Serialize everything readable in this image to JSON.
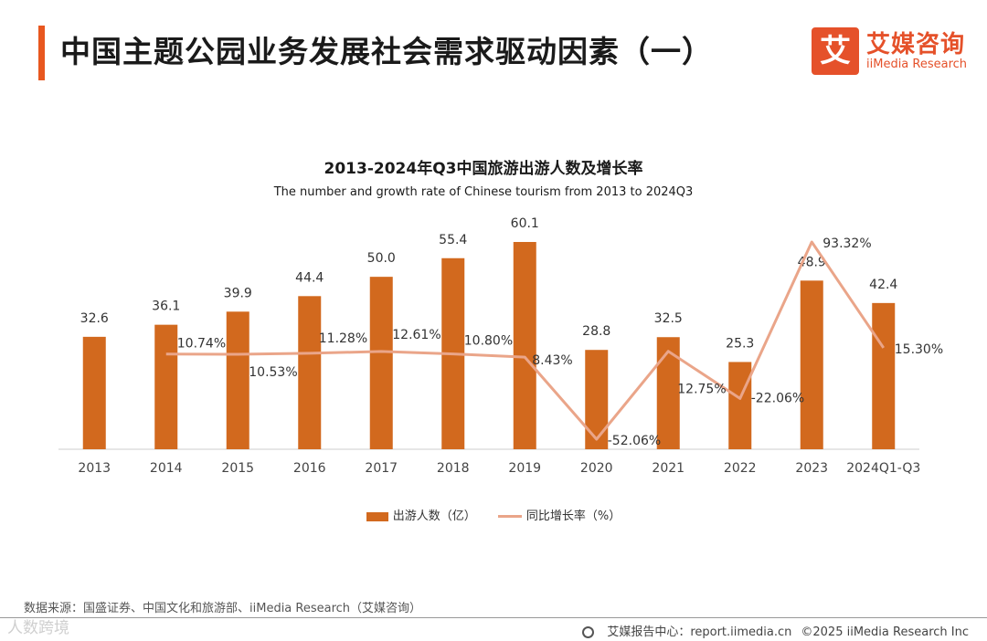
{
  "header": {
    "title": "中国主题公园业务发展社会需求驱动因素（一）",
    "logo_mark": "艾",
    "logo_cn": "艾媒咨询",
    "logo_en": "iiMedia Research"
  },
  "chart_data": {
    "type": "bar",
    "title": "2013-2024年Q3中国旅游出游人数及增长率",
    "subtitle": "The number and growth rate of Chinese tourism from 2013 to 2024Q3",
    "categories": [
      "2013",
      "2014",
      "2015",
      "2016",
      "2017",
      "2018",
      "2019",
      "2020",
      "2021",
      "2022",
      "2023",
      "2024Q1-Q3"
    ],
    "series": [
      {
        "name": "出游人数（亿）",
        "type": "bar",
        "values": [
          32.6,
          36.1,
          39.9,
          44.4,
          50.0,
          55.4,
          60.1,
          28.8,
          32.5,
          25.3,
          48.9,
          42.4
        ],
        "labels": [
          "32.6",
          "36.1",
          "39.9",
          "44.4",
          "50.0",
          "55.4",
          "60.1",
          "28.8",
          "32.5",
          "25.3",
          "48.9",
          "42.4"
        ],
        "color": "#d2691e"
      },
      {
        "name": "同比增长率（%）",
        "type": "line",
        "values": [
          null,
          10.74,
          10.53,
          11.28,
          12.61,
          10.8,
          8.43,
          -52.06,
          12.75,
          -22.06,
          93.32,
          15.3
        ],
        "labels": [
          "",
          "10.74%",
          "10.53%",
          "11.28%",
          "12.61%",
          "10.80%",
          "8.43%",
          "-52.06%",
          "12.75%",
          "-22.06%",
          "93.32%",
          "15.30%"
        ],
        "color": "#eaa589"
      }
    ],
    "ylim_bar": [
      0,
      70
    ],
    "ylim_line": [
      -60,
      100
    ],
    "grid": false,
    "legend_position": "bottom"
  },
  "footer": {
    "source": "数据来源：国盛证券、中国文化和旅游部、iiMedia Research（艾媒咨询）",
    "watermark": "人数跨境",
    "report_center": "艾媒报告中心：report.iimedia.cn",
    "copyright": "©2025  iiMedia Research  Inc"
  },
  "colors": {
    "accent": "#e8571f",
    "bar": "#d2691e",
    "line": "#eaa589"
  }
}
